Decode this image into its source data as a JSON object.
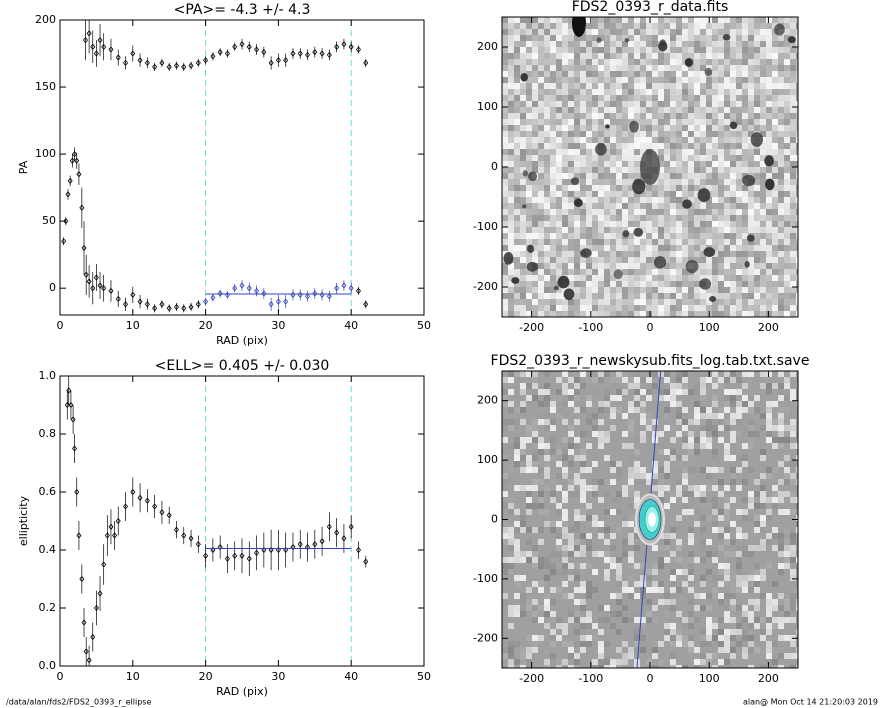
{
  "chart_data": [
    {
      "type": "scatter",
      "title": "<PA>=  -4.3 +/-   4.3",
      "xlabel": "RAD (pix)",
      "ylabel": "PA",
      "xlim": [
        0,
        50
      ],
      "ylim": [
        -20,
        200
      ],
      "xticks": [
        0,
        10,
        20,
        30,
        40,
        50
      ],
      "yticks": [
        0,
        50,
        100,
        150,
        200
      ],
      "vlines": [
        20,
        40
      ],
      "vline_color": "#66dddd",
      "fit": {
        "x": [
          20,
          40
        ],
        "value": -4.3,
        "color": "#3344bb"
      },
      "series": [
        {
          "color": "#000000",
          "x": [
            3.5,
            4,
            4.5,
            5,
            5.5,
            6,
            7,
            8,
            9,
            10,
            11,
            12,
            13,
            14,
            15,
            16,
            17,
            18,
            19,
            20,
            21,
            22,
            23,
            24,
            25,
            26,
            27,
            28,
            29,
            30,
            31,
            32,
            33,
            34,
            35,
            36,
            37,
            38,
            39,
            40,
            41,
            42
          ],
          "values": [
            185,
            190,
            180,
            175,
            185,
            180,
            178,
            172,
            168,
            175,
            170,
            168,
            165,
            168,
            165,
            166,
            165,
            166,
            168,
            170,
            173,
            176,
            175,
            180,
            182,
            180,
            178,
            176,
            168,
            170,
            170,
            175,
            175,
            174,
            176,
            175,
            174,
            180,
            182,
            180,
            178,
            168
          ],
          "errors": [
            15,
            15,
            12,
            10,
            12,
            10,
            8,
            6,
            5,
            6,
            5,
            4,
            3,
            3,
            3,
            3,
            3,
            3,
            3,
            3,
            3,
            3,
            3,
            3,
            4,
            4,
            4,
            4,
            5,
            5,
            5,
            4,
            4,
            4,
            4,
            4,
            4,
            4,
            4,
            4,
            3,
            3
          ]
        },
        {
          "color": "#000000",
          "x": [
            0.5,
            0.8,
            1.1,
            1.4,
            1.7,
            2,
            2.3,
            2.6,
            3,
            3.3,
            3.6,
            4,
            4.5,
            5,
            5.5,
            6,
            7,
            8,
            9,
            10,
            11,
            12,
            13,
            14,
            15,
            16,
            17,
            18,
            19,
            41,
            42
          ],
          "values": [
            35,
            50,
            70,
            80,
            95,
            100,
            95,
            85,
            60,
            30,
            10,
            5,
            0,
            8,
            2,
            0,
            -2,
            -8,
            -12,
            -5,
            -10,
            -12,
            -15,
            -12,
            -15,
            -14,
            -15,
            -14,
            -12,
            -2,
            -12
          ],
          "errors": [
            3,
            3,
            4,
            4,
            5,
            5,
            6,
            8,
            15,
            20,
            15,
            12,
            12,
            10,
            10,
            10,
            8,
            6,
            5,
            6,
            5,
            4,
            3,
            3,
            3,
            3,
            3,
            3,
            3,
            3,
            3
          ]
        },
        {
          "color": "#3344bb",
          "x": [
            20,
            21,
            22,
            23,
            24,
            25,
            26,
            27,
            28,
            29,
            30,
            31,
            32,
            33,
            34,
            35,
            36,
            37,
            38,
            39,
            40
          ],
          "values": [
            -10,
            -7,
            -4,
            -5,
            0,
            2,
            0,
            -2,
            -4,
            -12,
            -10,
            -10,
            -5,
            -5,
            -6,
            -4,
            -5,
            -6,
            0,
            2,
            0
          ],
          "errors": [
            3,
            3,
            3,
            3,
            3,
            4,
            4,
            4,
            4,
            5,
            5,
            5,
            4,
            4,
            4,
            4,
            4,
            4,
            4,
            4,
            4
          ]
        }
      ]
    },
    {
      "type": "image",
      "title": "FDS2_0393_r_data.fits",
      "style": "light",
      "xlim": [
        -250,
        250
      ],
      "ylim": [
        -250,
        250
      ],
      "xticks": [
        -200,
        -100,
        0,
        100,
        200
      ],
      "yticks": [
        -200,
        -100,
        0,
        100,
        200
      ]
    },
    {
      "type": "scatter",
      "title": "<ELL>= 0.405 +/-  0.030",
      "xlabel": "RAD (pix)",
      "ylabel": "ellipticity",
      "xlim": [
        0,
        50
      ],
      "ylim": [
        0,
        1
      ],
      "xticks": [
        0,
        10,
        20,
        30,
        40,
        50
      ],
      "yticks": [
        {
          "value": 0,
          "label": "0.0"
        },
        0.2,
        0.4,
        0.6,
        0.8,
        {
          "value": 1,
          "label": "1.0"
        }
      ],
      "vlines": [
        20,
        40
      ],
      "vline_color": "#66dddd",
      "fit": {
        "x": [
          20,
          40
        ],
        "value": 0.405,
        "color": "#3344bb"
      },
      "series": [
        {
          "color": "#000000",
          "x": [
            1,
            1.2,
            1.5,
            1.8,
            2,
            2.3,
            2.6,
            3,
            3.3,
            3.6,
            4,
            4.5,
            5,
            5.5,
            6,
            6.5,
            7,
            7.5,
            8,
            9,
            10,
            11,
            12,
            13,
            14,
            15,
            16,
            17,
            18,
            19,
            20,
            21,
            22,
            23,
            24,
            25,
            26,
            27,
            28,
            29,
            30,
            31,
            32,
            33,
            34,
            35,
            36,
            37,
            38,
            39,
            40,
            41,
            42
          ],
          "values": [
            0.9,
            0.95,
            0.9,
            0.85,
            0.75,
            0.6,
            0.45,
            0.3,
            0.15,
            0.05,
            0.02,
            0.1,
            0.2,
            0.25,
            0.35,
            0.45,
            0.48,
            0.45,
            0.5,
            0.55,
            0.6,
            0.58,
            0.57,
            0.55,
            0.53,
            0.52,
            0.47,
            0.45,
            0.44,
            0.42,
            0.38,
            0.4,
            0.41,
            0.37,
            0.38,
            0.38,
            0.37,
            0.39,
            0.4,
            0.4,
            0.4,
            0.4,
            0.41,
            0.42,
            0.41,
            0.42,
            0.43,
            0.48,
            0.46,
            0.44,
            0.48,
            0.4,
            0.36
          ],
          "errors": [
            0.05,
            0.05,
            0.05,
            0.05,
            0.05,
            0.05,
            0.05,
            0.05,
            0.05,
            0.05,
            0.05,
            0.05,
            0.06,
            0.06,
            0.07,
            0.07,
            0.06,
            0.05,
            0.05,
            0.05,
            0.05,
            0.05,
            0.04,
            0.04,
            0.04,
            0.03,
            0.03,
            0.03,
            0.03,
            0.03,
            0.04,
            0.04,
            0.04,
            0.05,
            0.05,
            0.06,
            0.06,
            0.06,
            0.06,
            0.07,
            0.07,
            0.06,
            0.05,
            0.05,
            0.05,
            0.05,
            0.05,
            0.05,
            0.05,
            0.05,
            0.04,
            0.03,
            0.02
          ]
        }
      ]
    },
    {
      "type": "image",
      "title": "FDS2_0393_r_newskysub.fits_log.tab.txt.save",
      "style": "masked",
      "xlim": [
        -250,
        250
      ],
      "ylim": [
        -250,
        250
      ],
      "xticks": [
        -200,
        -100,
        0,
        100,
        200
      ],
      "yticks": [
        -200,
        -100,
        0,
        100,
        200
      ],
      "line": {
        "x": [
          -22,
          18
        ],
        "y": [
          -250,
          250
        ],
        "color": "#3344bb"
      }
    }
  ],
  "footer": {
    "left": "/data/alan/fds2/FDS2_0393_r_ellipse",
    "right": "alan@  Mon Oct 14 21:20:03 2019"
  }
}
